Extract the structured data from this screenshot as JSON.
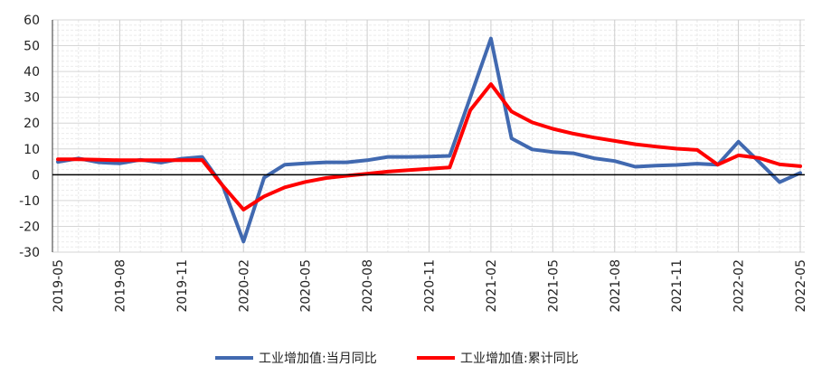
{
  "chart_data": {
    "type": "line",
    "title": "",
    "xlabel": "",
    "ylabel": "",
    "ylim": [
      -30,
      60
    ],
    "y_ticks": [
      60,
      50,
      40,
      30,
      20,
      10,
      0,
      -10,
      -20,
      -30
    ],
    "grid": true,
    "legend_position": "bottom",
    "x_labels": [
      "2019-05",
      "2019-08",
      "2019-11",
      "2020-02",
      "2020-05",
      "2020-08",
      "2020-11",
      "2021-02",
      "2021-05",
      "2021-08",
      "2021-11",
      "2022-02",
      "2022-05"
    ],
    "x": [
      "2019-05",
      "2019-06",
      "2019-07",
      "2019-08",
      "2019-09",
      "2019-10",
      "2019-11",
      "2019-12",
      "2020-01",
      "2020-02",
      "2020-03",
      "2020-04",
      "2020-05",
      "2020-06",
      "2020-07",
      "2020-08",
      "2020-09",
      "2020-10",
      "2020-11",
      "2020-12",
      "2021-01",
      "2021-02",
      "2021-03",
      "2021-04",
      "2021-05",
      "2021-06",
      "2021-07",
      "2021-08",
      "2021-09",
      "2021-10",
      "2021-11",
      "2021-12",
      "2022-01",
      "2022-02",
      "2022-03",
      "2022-04",
      "2022-05"
    ],
    "series": [
      {
        "name": "工业增加值:当月同比",
        "color": "#4169b0",
        "values": [
          5.0,
          6.3,
          4.8,
          4.4,
          5.8,
          4.7,
          6.2,
          6.9,
          -4.3,
          -25.9,
          -1.1,
          3.9,
          4.4,
          4.8,
          4.8,
          5.6,
          6.9,
          6.9,
          7.0,
          7.3,
          30.0,
          52.8,
          14.1,
          9.8,
          8.8,
          8.3,
          6.4,
          5.3,
          3.1,
          3.5,
          3.8,
          4.3,
          3.9,
          12.8,
          5.0,
          -2.9,
          0.7
        ]
      },
      {
        "name": "工业增加值:累计同比",
        "color": "#ff0000",
        "values": [
          6.0,
          6.0,
          5.8,
          5.6,
          5.6,
          5.6,
          5.6,
          5.7,
          -4.3,
          -13.5,
          -8.4,
          -4.9,
          -2.8,
          -1.3,
          -0.4,
          0.4,
          1.2,
          1.8,
          2.3,
          2.8,
          25.0,
          35.1,
          24.5,
          20.3,
          17.8,
          15.9,
          14.4,
          13.1,
          11.8,
          10.9,
          10.1,
          9.6,
          3.9,
          7.5,
          6.5,
          4.0,
          3.3
        ]
      }
    ]
  }
}
